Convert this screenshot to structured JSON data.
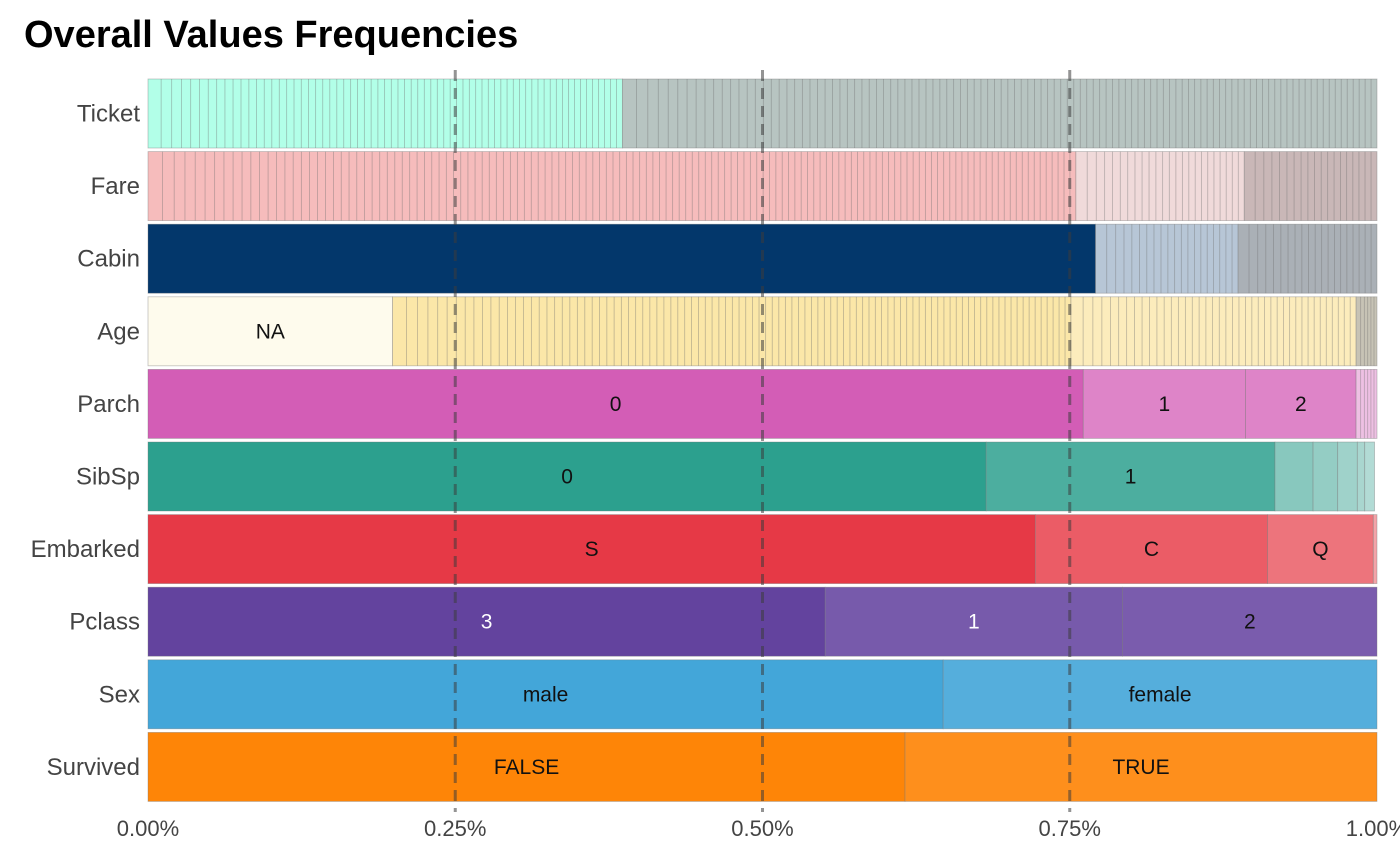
{
  "chart_data": {
    "type": "bar",
    "orientation": "horizontal",
    "stacked": true,
    "title": "Overall Values Frequencies",
    "xlabel": "",
    "ylabel": "",
    "xlim": [
      0,
      1
    ],
    "x_ticks": [
      "0.00%",
      "0.25%",
      "0.50%",
      "0.75%",
      "1.00%"
    ],
    "reference_lines": [
      0.25,
      0.5,
      0.75
    ],
    "grid": false,
    "rows": [
      {
        "name": "Ticket",
        "color": "#b2ffe8",
        "segments": [
          {
            "label": "",
            "value": 0.386,
            "many": true
          },
          {
            "label": "",
            "value": 0.614,
            "many": true,
            "color": "#b7c4c1"
          }
        ]
      },
      {
        "name": "Fare",
        "color": "#f6bcbc",
        "segments": [
          {
            "label": "",
            "value": 0.755,
            "many": true
          },
          {
            "label": "",
            "value": 0.137,
            "many": true,
            "color": "#f0dada"
          },
          {
            "label": "",
            "value": 0.108,
            "many": true,
            "color": "#c9b7b7"
          }
        ]
      },
      {
        "name": "Cabin",
        "color": "#03376b",
        "segments": [
          {
            "label": "",
            "value": 0.771
          },
          {
            "label": "",
            "value": 0.116,
            "many": true,
            "color": "#b7c6d6"
          },
          {
            "label": "",
            "value": 0.113,
            "many": true,
            "color": "#aab0b6"
          }
        ]
      },
      {
        "name": "Age",
        "color": "#fbe7a8",
        "segments": [
          {
            "label": "NA",
            "value": 0.199,
            "color": "#fefbed"
          },
          {
            "label": "",
            "value": 0.552,
            "many": true
          },
          {
            "label": "",
            "value": 0.232,
            "many": true,
            "color": "#fcecbc"
          },
          {
            "label": "",
            "value": 0.017,
            "many": true,
            "color": "#c7c3b5"
          }
        ]
      },
      {
        "name": "Parch",
        "color": "#d35db6",
        "segments": [
          {
            "label": "0",
            "value": 0.761
          },
          {
            "label": "1",
            "value": 0.132,
            "color": "#de84c8"
          },
          {
            "label": "2",
            "value": 0.09,
            "color": "#de84c8"
          },
          {
            "label": "",
            "value": 0.017,
            "many": true,
            "color": "#eec0e3"
          }
        ]
      },
      {
        "name": "SibSp",
        "color": "#2ca08e",
        "segments": [
          {
            "label": "0",
            "value": 0.682
          },
          {
            "label": "1",
            "value": 0.235,
            "color": "#4cae9f"
          },
          {
            "label": "",
            "value": 0.031,
            "color": "#88c8be"
          },
          {
            "label": "",
            "value": 0.02,
            "color": "#94cdc4"
          },
          {
            "label": "",
            "value": 0.016,
            "color": "#9fd2ca"
          },
          {
            "label": "",
            "value": 0.006,
            "color": "#a9d6cf"
          },
          {
            "label": "",
            "value": 0.008,
            "color": "#b2dbd5"
          }
        ]
      },
      {
        "name": "Embarked",
        "color": "#e63946",
        "segments": [
          {
            "label": "S",
            "value": 0.722
          },
          {
            "label": "C",
            "value": 0.189,
            "color": "#eb5c66"
          },
          {
            "label": "Q",
            "value": 0.086,
            "color": "#ed747c"
          },
          {
            "label": "",
            "value": 0.003,
            "color": "#f3a3a8"
          }
        ]
      },
      {
        "name": "Pclass",
        "color": "#63439e",
        "segments": [
          {
            "label": "3",
            "value": 0.551
          },
          {
            "label": "1",
            "value": 0.242,
            "color": "#775aab"
          },
          {
            "label": "2",
            "value": 0.207,
            "color": "#7a5cad"
          }
        ]
      },
      {
        "name": "Sex",
        "color": "#43a6d9",
        "segments": [
          {
            "label": "male",
            "value": 0.647
          },
          {
            "label": "female",
            "value": 0.353,
            "color": "#55aedc"
          }
        ]
      },
      {
        "name": "Survived",
        "color": "#fe8507",
        "segments": [
          {
            "label": "FALSE",
            "value": 0.616
          },
          {
            "label": "TRUE",
            "value": 0.384,
            "color": "#fe8f1c"
          }
        ]
      }
    ],
    "label_colors": {
      "dark": "#111111",
      "light": "#ffffff"
    }
  }
}
